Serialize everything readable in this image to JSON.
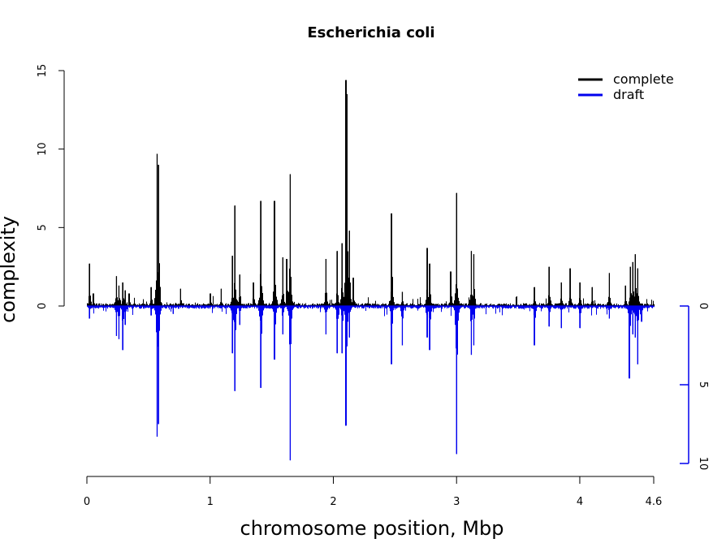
{
  "chart_data": {
    "type": "area",
    "title": "Escherichia coli",
    "xlabel": "chromosome position, Mbp",
    "ylabel": "complexity",
    "xlim": [
      0,
      4.6
    ],
    "x_ticks": [
      {
        "value": 0,
        "label": "0"
      },
      {
        "value": 1,
        "label": "1"
      },
      {
        "value": 2,
        "label": "2"
      },
      {
        "value": 3,
        "label": "3"
      },
      {
        "value": 4,
        "label": "4"
      },
      {
        "value": 4.6,
        "label": "4.6"
      }
    ],
    "left_axis": {
      "range": [
        0,
        15
      ],
      "ticks": [
        "0",
        "5",
        "10",
        "15"
      ],
      "color": "#000000"
    },
    "right_axis": {
      "range": [
        0,
        10
      ],
      "ticks": [
        "0",
        "5",
        "10"
      ],
      "direction": "down",
      "color": "#0000ee"
    },
    "legend_position": "top-right",
    "grid": false,
    "series": [
      {
        "name": "complete",
        "color": "#000000",
        "axis": "left",
        "baseline": 0.1,
        "peaks": [
          {
            "x": 0.02,
            "y": 2.7
          },
          {
            "x": 0.05,
            "y": 0.8
          },
          {
            "x": 0.24,
            "y": 1.9
          },
          {
            "x": 0.26,
            "y": 1.3
          },
          {
            "x": 0.29,
            "y": 1.5
          },
          {
            "x": 0.31,
            "y": 1.0
          },
          {
            "x": 0.34,
            "y": 0.8
          },
          {
            "x": 0.52,
            "y": 1.2
          },
          {
            "x": 0.57,
            "y": 9.7
          },
          {
            "x": 0.58,
            "y": 9.0
          },
          {
            "x": 0.76,
            "y": 1.1
          },
          {
            "x": 1.0,
            "y": 0.8
          },
          {
            "x": 1.09,
            "y": 1.1
          },
          {
            "x": 1.18,
            "y": 3.2
          },
          {
            "x": 1.2,
            "y": 6.4
          },
          {
            "x": 1.24,
            "y": 2.0
          },
          {
            "x": 1.35,
            "y": 1.5
          },
          {
            "x": 1.41,
            "y": 6.7
          },
          {
            "x": 1.52,
            "y": 6.7
          },
          {
            "x": 1.59,
            "y": 3.1
          },
          {
            "x": 1.62,
            "y": 3.0
          },
          {
            "x": 1.65,
            "y": 8.4
          },
          {
            "x": 1.94,
            "y": 3.0
          },
          {
            "x": 2.03,
            "y": 3.5
          },
          {
            "x": 2.07,
            "y": 4.0
          },
          {
            "x": 2.1,
            "y": 14.4
          },
          {
            "x": 2.11,
            "y": 13.5
          },
          {
            "x": 2.13,
            "y": 4.8
          },
          {
            "x": 2.16,
            "y": 1.8
          },
          {
            "x": 2.47,
            "y": 5.9
          },
          {
            "x": 2.56,
            "y": 0.9
          },
          {
            "x": 2.76,
            "y": 3.7
          },
          {
            "x": 2.78,
            "y": 2.7
          },
          {
            "x": 2.95,
            "y": 2.2
          },
          {
            "x": 3.0,
            "y": 7.2
          },
          {
            "x": 3.12,
            "y": 3.5
          },
          {
            "x": 3.14,
            "y": 3.3
          },
          {
            "x": 3.63,
            "y": 1.2
          },
          {
            "x": 3.75,
            "y": 2.5
          },
          {
            "x": 3.85,
            "y": 1.5
          },
          {
            "x": 3.92,
            "y": 2.4
          },
          {
            "x": 4.0,
            "y": 1.5
          },
          {
            "x": 4.1,
            "y": 1.2
          },
          {
            "x": 4.24,
            "y": 2.1
          },
          {
            "x": 4.37,
            "y": 1.3
          },
          {
            "x": 4.41,
            "y": 2.5
          },
          {
            "x": 4.43,
            "y": 2.8
          },
          {
            "x": 4.45,
            "y": 3.3
          },
          {
            "x": 4.47,
            "y": 2.4
          }
        ]
      },
      {
        "name": "draft",
        "color": "#0000ee",
        "axis": "right",
        "baseline": 0.1,
        "peaks": [
          {
            "x": 0.02,
            "y": 0.8
          },
          {
            "x": 0.24,
            "y": 1.9
          },
          {
            "x": 0.26,
            "y": 2.1
          },
          {
            "x": 0.29,
            "y": 2.8
          },
          {
            "x": 0.31,
            "y": 1.2
          },
          {
            "x": 0.52,
            "y": 0.6
          },
          {
            "x": 0.57,
            "y": 8.3
          },
          {
            "x": 0.58,
            "y": 7.5
          },
          {
            "x": 0.7,
            "y": 0.5
          },
          {
            "x": 1.18,
            "y": 3.0
          },
          {
            "x": 1.2,
            "y": 5.4
          },
          {
            "x": 1.24,
            "y": 1.2
          },
          {
            "x": 1.41,
            "y": 5.2
          },
          {
            "x": 1.52,
            "y": 3.4
          },
          {
            "x": 1.59,
            "y": 1.8
          },
          {
            "x": 1.65,
            "y": 9.8
          },
          {
            "x": 1.94,
            "y": 1.8
          },
          {
            "x": 2.03,
            "y": 3.0
          },
          {
            "x": 2.07,
            "y": 3.0
          },
          {
            "x": 2.1,
            "y": 7.6
          },
          {
            "x": 2.13,
            "y": 2.0
          },
          {
            "x": 2.47,
            "y": 3.7
          },
          {
            "x": 2.56,
            "y": 2.5
          },
          {
            "x": 2.76,
            "y": 2.0
          },
          {
            "x": 2.78,
            "y": 2.8
          },
          {
            "x": 3.0,
            "y": 9.4
          },
          {
            "x": 3.12,
            "y": 3.1
          },
          {
            "x": 3.14,
            "y": 2.5
          },
          {
            "x": 3.63,
            "y": 2.5
          },
          {
            "x": 3.75,
            "y": 1.3
          },
          {
            "x": 3.85,
            "y": 1.4
          },
          {
            "x": 4.0,
            "y": 1.4
          },
          {
            "x": 4.24,
            "y": 0.8
          },
          {
            "x": 4.4,
            "y": 4.6
          },
          {
            "x": 4.43,
            "y": 1.8
          },
          {
            "x": 4.45,
            "y": 2.0
          },
          {
            "x": 4.47,
            "y": 3.7
          },
          {
            "x": 4.5,
            "y": 1.0
          }
        ]
      }
    ]
  }
}
